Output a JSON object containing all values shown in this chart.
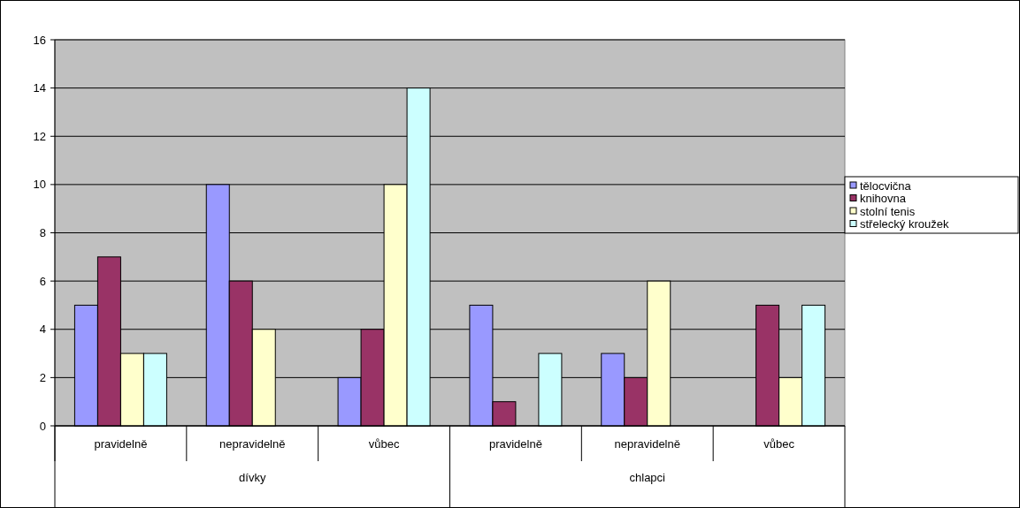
{
  "chart_data": {
    "type": "bar",
    "categories": [
      "pravidelně",
      "nepravidelně",
      "vůbec",
      "pravidelně",
      "nepravidelně",
      "vůbec"
    ],
    "series": [
      {
        "name": "tělocvična",
        "color": "#9999ff",
        "values": [
          5,
          10,
          2,
          5,
          3,
          0
        ]
      },
      {
        "name": "knihovna",
        "color": "#993366",
        "values": [
          7,
          6,
          4,
          1,
          2,
          5
        ]
      },
      {
        "name": "stolní tenis",
        "color": "#ffffcc",
        "values": [
          3,
          4,
          10,
          0,
          6,
          2
        ]
      },
      {
        "name": "střelecký kroužek",
        "color": "#ccffff",
        "values": [
          3,
          0,
          14,
          3,
          0,
          5
        ]
      }
    ],
    "ylim": [
      0,
      16
    ],
    "yticks": [
      0,
      2,
      4,
      6,
      8,
      10,
      12,
      14,
      16
    ],
    "grid": "y",
    "legend": "right",
    "annotations": [
      "dívky",
      "chlapci"
    ]
  }
}
